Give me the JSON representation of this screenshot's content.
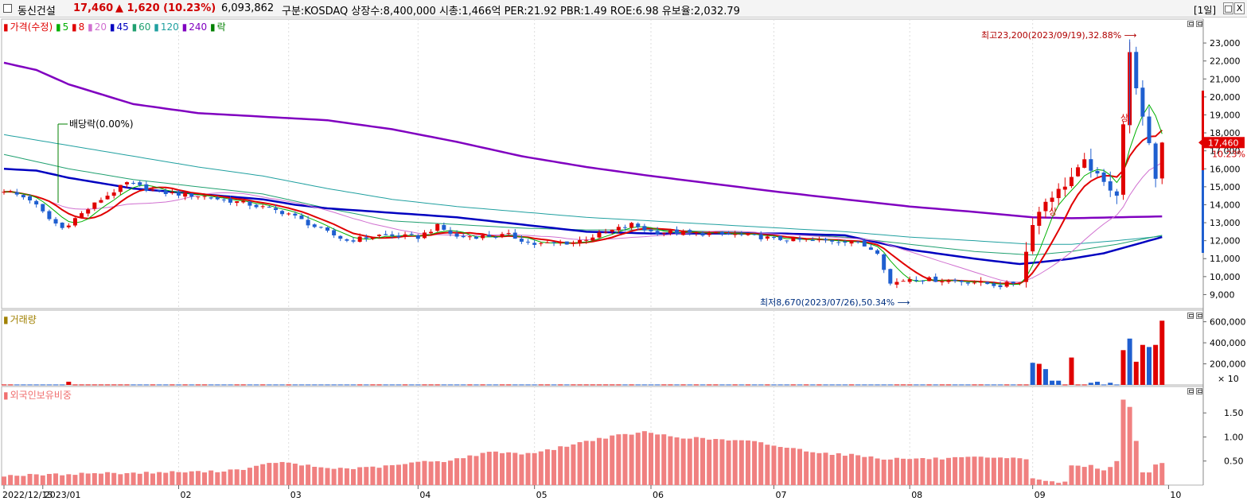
{
  "header": {
    "name": "동신건설",
    "price": "17,460",
    "change": "▲ 1,620 (10.23%)",
    "volume": "6,093,862",
    "info": "구분:KOSDAQ 상장수:8,400,000 시총:1,466억 PER:21.92 PBR:1.49 ROE:6.98 유보율:2,032.79",
    "period_label": "[1일]",
    "min_button": "□",
    "close_button": "X"
  },
  "price_legend": {
    "items": [
      {
        "label": "가격(수정)",
        "color": "#e00000"
      },
      {
        "label": "5",
        "color": "#00b000"
      },
      {
        "label": "8",
        "color": "#e00000"
      },
      {
        "label": "20",
        "color": "#d070d0"
      },
      {
        "label": "45",
        "color": "#0000c0"
      },
      {
        "label": "60",
        "color": "#20a070"
      },
      {
        "label": "120",
        "color": "#20a0a0"
      },
      {
        "label": "240",
        "color": "#8000c0"
      },
      {
        "label": "락",
        "color": "#008000"
      }
    ]
  },
  "annotations": {
    "dividend": "배당락(0.00%)",
    "high": "최고23,200(2023/09/19),32.88%",
    "low": "최저8,670(2023/07/26),50.34%",
    "upper_limit_1": "상",
    "upper_limit_2": "상",
    "price_tag": "17,460",
    "pct_tag": "10.23%"
  },
  "volume_legend": {
    "label": "거래량",
    "color": "#a08000"
  },
  "foreign_legend": {
    "label": "외국인보유비중",
    "color": "#f07070"
  },
  "colors": {
    "up": "#e00000",
    "down": "#1f5fd0",
    "ma240": "#8000c0",
    "ma45": "#0000c0"
  },
  "chart_data": [
    {
      "type": "candlestick",
      "title": "가격(수정)",
      "ylim": [
        8400,
        23800
      ],
      "y_ticks": [
        "23,000",
        "22,000",
        "21,000",
        "20,000",
        "19,000",
        "18,000",
        "17,000",
        "16,000",
        "15,000",
        "14,000",
        "13,000",
        "12,000",
        "11,000",
        "10,000",
        "9,000"
      ],
      "x_labels": [
        "2022/12/15",
        "2023/01",
        "02",
        "03",
        "04",
        "05",
        "06",
        "07",
        "08",
        "09",
        "10"
      ],
      "x_label_positions_day": [
        0,
        6,
        27,
        44,
        64,
        82,
        100,
        119,
        140,
        159,
        180
      ],
      "anchors": [
        [
          0,
          14800
        ],
        [
          4,
          14300
        ],
        [
          7,
          13200
        ],
        [
          9,
          12700
        ],
        [
          12,
          13500
        ],
        [
          15,
          14300
        ],
        [
          19,
          15200
        ],
        [
          24,
          14700
        ],
        [
          30,
          14500
        ],
        [
          37,
          14100
        ],
        [
          44,
          13500
        ],
        [
          49,
          12600
        ],
        [
          53,
          12000
        ],
        [
          58,
          12300
        ],
        [
          64,
          12200
        ],
        [
          67,
          12800
        ],
        [
          70,
          12200
        ],
        [
          78,
          12300
        ],
        [
          82,
          11800
        ],
        [
          88,
          11900
        ],
        [
          97,
          12900
        ],
        [
          100,
          12500
        ],
        [
          108,
          12400
        ],
        [
          115,
          12300
        ],
        [
          119,
          12100
        ],
        [
          125,
          12000
        ],
        [
          131,
          12000
        ],
        [
          135,
          11400
        ],
        [
          137,
          9600
        ],
        [
          140,
          9900
        ],
        [
          145,
          9800
        ],
        [
          150,
          9700
        ],
        [
          154,
          9500
        ],
        [
          157,
          9750
        ],
        [
          159,
          13000
        ],
        [
          161,
          14200
        ],
        [
          164,
          15100
        ],
        [
          167,
          16400
        ],
        [
          170,
          15200
        ],
        [
          172,
          14600
        ],
        [
          173,
          18500
        ],
        [
          174,
          22400
        ],
        [
          176,
          18800
        ],
        [
          177,
          17300
        ],
        [
          178,
          15500
        ],
        [
          179,
          17460
        ]
      ],
      "ma240": [
        [
          0,
          21900
        ],
        [
          5,
          21500
        ],
        [
          10,
          20700
        ],
        [
          20,
          19600
        ],
        [
          30,
          19100
        ],
        [
          40,
          18900
        ],
        [
          50,
          18700
        ],
        [
          60,
          18200
        ],
        [
          70,
          17500
        ],
        [
          80,
          16700
        ],
        [
          90,
          16100
        ],
        [
          100,
          15600
        ],
        [
          110,
          15150
        ],
        [
          120,
          14700
        ],
        [
          130,
          14300
        ],
        [
          140,
          13900
        ],
        [
          150,
          13600
        ],
        [
          159,
          13300
        ],
        [
          165,
          13250
        ],
        [
          179,
          13350
        ]
      ],
      "ma45": [
        [
          0,
          16000
        ],
        [
          5,
          15900
        ],
        [
          10,
          15500
        ],
        [
          20,
          14900
        ],
        [
          30,
          14600
        ],
        [
          40,
          14300
        ],
        [
          45,
          14000
        ],
        [
          50,
          13800
        ],
        [
          60,
          13550
        ],
        [
          70,
          13300
        ],
        [
          80,
          12900
        ],
        [
          90,
          12500
        ],
        [
          100,
          12400
        ],
        [
          110,
          12400
        ],
        [
          120,
          12400
        ],
        [
          130,
          12300
        ],
        [
          140,
          11500
        ],
        [
          150,
          11000
        ],
        [
          157,
          10700
        ],
        [
          160,
          10800
        ],
        [
          165,
          11000
        ],
        [
          170,
          11300
        ],
        [
          175,
          11800
        ],
        [
          179,
          12200
        ]
      ],
      "ma120": [
        [
          0,
          17900
        ],
        [
          10,
          17300
        ],
        [
          20,
          16700
        ],
        [
          30,
          16100
        ],
        [
          40,
          15600
        ],
        [
          50,
          14900
        ],
        [
          60,
          14300
        ],
        [
          70,
          13900
        ],
        [
          80,
          13600
        ],
        [
          90,
          13300
        ],
        [
          100,
          13100
        ],
        [
          110,
          12900
        ],
        [
          120,
          12700
        ],
        [
          130,
          12500
        ],
        [
          140,
          12200
        ],
        [
          150,
          12000
        ],
        [
          159,
          11800
        ],
        [
          165,
          11800
        ],
        [
          172,
          12000
        ],
        [
          179,
          12250
        ]
      ],
      "ma60": [
        [
          0,
          16800
        ],
        [
          10,
          16000
        ],
        [
          20,
          15400
        ],
        [
          30,
          15000
        ],
        [
          40,
          14600
        ],
        [
          50,
          13800
        ],
        [
          60,
          13100
        ],
        [
          70,
          12900
        ],
        [
          80,
          12700
        ],
        [
          90,
          12600
        ],
        [
          100,
          12600
        ],
        [
          110,
          12500
        ],
        [
          120,
          12400
        ],
        [
          130,
          12200
        ],
        [
          140,
          11800
        ],
        [
          150,
          11400
        ],
        [
          159,
          11200
        ],
        [
          165,
          11400
        ],
        [
          172,
          11800
        ],
        [
          179,
          12300
        ]
      ]
    },
    {
      "type": "bar",
      "title": "거래량",
      "ylim": [
        0,
        680000
      ],
      "y_ticks": [
        "600,000",
        "400,000",
        "200,000"
      ],
      "unit": "× 10",
      "baseline_value": 4000,
      "spikes": [
        [
          159,
          210000,
          "down"
        ],
        [
          160,
          200000,
          "up"
        ],
        [
          161,
          150000,
          "down"
        ],
        [
          162,
          40000,
          "down"
        ],
        [
          163,
          40000,
          "down"
        ],
        [
          165,
          260000,
          "up"
        ],
        [
          168,
          20000,
          "down"
        ],
        [
          169,
          30000,
          "down"
        ],
        [
          171,
          20000,
          "down"
        ],
        [
          173,
          330000,
          "up"
        ],
        [
          174,
          440000,
          "down"
        ],
        [
          175,
          220000,
          "up"
        ],
        [
          176,
          380000,
          "up"
        ],
        [
          177,
          360000,
          "down"
        ],
        [
          178,
          380000,
          "up"
        ],
        [
          179,
          610000,
          "up"
        ],
        [
          10,
          30000,
          "up"
        ]
      ]
    },
    {
      "type": "bar",
      "title": "외국인보유비중",
      "ylim": [
        0,
        1.95
      ],
      "y_ticks": [
        "1.50",
        "1.00",
        "0.50"
      ],
      "anchors": [
        [
          0,
          0.2
        ],
        [
          8,
          0.22
        ],
        [
          14,
          0.25
        ],
        [
          20,
          0.25
        ],
        [
          26,
          0.27
        ],
        [
          32,
          0.28
        ],
        [
          38,
          0.35
        ],
        [
          42,
          0.48
        ],
        [
          46,
          0.42
        ],
        [
          50,
          0.35
        ],
        [
          55,
          0.35
        ],
        [
          60,
          0.4
        ],
        [
          64,
          0.48
        ],
        [
          68,
          0.5
        ],
        [
          72,
          0.6
        ],
        [
          76,
          0.7
        ],
        [
          80,
          0.65
        ],
        [
          84,
          0.72
        ],
        [
          88,
          0.85
        ],
        [
          92,
          0.97
        ],
        [
          96,
          1.05
        ],
        [
          99,
          1.1
        ],
        [
          104,
          1.0
        ],
        [
          110,
          0.95
        ],
        [
          116,
          0.9
        ],
        [
          120,
          0.8
        ],
        [
          124,
          0.72
        ],
        [
          128,
          0.65
        ],
        [
          132,
          0.62
        ],
        [
          136,
          0.55
        ],
        [
          140,
          0.55
        ],
        [
          145,
          0.55
        ],
        [
          150,
          0.57
        ],
        [
          155,
          0.55
        ],
        [
          158,
          0.55
        ],
        [
          159,
          0.15
        ],
        [
          162,
          0.06
        ],
        [
          164,
          0.06
        ],
        [
          165,
          0.4
        ],
        [
          168,
          0.4
        ],
        [
          170,
          0.3
        ],
        [
          172,
          0.5
        ],
        [
          173,
          1.8
        ],
        [
          174,
          1.6
        ],
        [
          175,
          0.9
        ],
        [
          176,
          0.25
        ],
        [
          177,
          0.25
        ],
        [
          178,
          0.45
        ],
        [
          179,
          0.45
        ]
      ]
    }
  ]
}
